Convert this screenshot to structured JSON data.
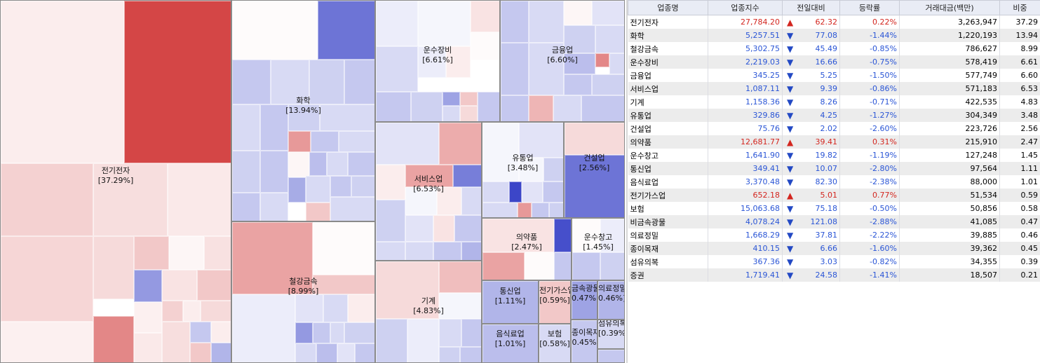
{
  "colors": {
    "up_text": "#d3261f",
    "down_text": "#2a55d6",
    "header_bg": "#e9ecf5",
    "alt_row_bg": "#ececec"
  },
  "treemap": {
    "sectors": [
      {
        "name": "전기전자",
        "weight": "[37.29%]",
        "change": 0.22
      },
      {
        "name": "화학",
        "weight": "[13.94%]",
        "change": -1.44
      },
      {
        "name": "철강금속",
        "weight": "[8.99%]",
        "change": -0.85
      },
      {
        "name": "운수장비",
        "weight": "[6.61%]",
        "change": -0.75
      },
      {
        "name": "금융업",
        "weight": "[6.60%]",
        "change": -1.5
      },
      {
        "name": "서비스업",
        "weight": "[6.53%]",
        "change": -0.86
      },
      {
        "name": "기계",
        "weight": "[4.83%]",
        "change": -0.71
      },
      {
        "name": "유통업",
        "weight": "[3.48%]",
        "change": -1.27
      },
      {
        "name": "건설업",
        "weight": "[2.56%]",
        "change": -2.6
      },
      {
        "name": "의약품",
        "weight": "[2.47%]",
        "change": 0.31
      },
      {
        "name": "운수창고",
        "weight": "[1.45%]",
        "change": -1.19
      },
      {
        "name": "통신업",
        "weight": "[1.11%]",
        "change": -2.8
      },
      {
        "name": "전기가스업",
        "weight": "[0.59%]",
        "change": 0.77
      },
      {
        "name": "금속광물",
        "weight": "0.47%]",
        "change": -2.88
      },
      {
        "name": "의료정밀",
        "weight": "0.46%]",
        "change": -2.22
      },
      {
        "name": "음식료업",
        "weight": "[1.01%]",
        "change": -2.38
      },
      {
        "name": "보험",
        "weight": "[0.58%]",
        "change": -0.5
      },
      {
        "name": "종이목재",
        "weight": "0.45%",
        "change": -1.6
      },
      {
        "name": "섬유의복",
        "weight": "[0.39%]",
        "change": -0.82
      },
      {
        "name": "증권",
        "weight": "",
        "change": -1.41
      }
    ]
  },
  "table": {
    "headers": [
      "업종명",
      "업종지수",
      "전일대비",
      "등락률",
      "거래대금(백만)",
      "비중"
    ],
    "rows": [
      {
        "name": "전기전자",
        "index": "27,784.20",
        "dir": "up",
        "diff": "62.32",
        "rate": "0.22%",
        "amount": "3,263,947",
        "share": "37.29"
      },
      {
        "name": "화학",
        "index": "5,257.51",
        "dir": "down",
        "diff": "77.08",
        "rate": "-1.44%",
        "amount": "1,220,193",
        "share": "13.94"
      },
      {
        "name": "철강금속",
        "index": "5,302.75",
        "dir": "down",
        "diff": "45.49",
        "rate": "-0.85%",
        "amount": "786,627",
        "share": "8.99"
      },
      {
        "name": "운수장비",
        "index": "2,219.03",
        "dir": "down",
        "diff": "16.66",
        "rate": "-0.75%",
        "amount": "578,419",
        "share": "6.61"
      },
      {
        "name": "금융업",
        "index": "345.25",
        "dir": "down",
        "diff": "5.25",
        "rate": "-1.50%",
        "amount": "577,749",
        "share": "6.60"
      },
      {
        "name": "서비스업",
        "index": "1,087.11",
        "dir": "down",
        "diff": "9.39",
        "rate": "-0.86%",
        "amount": "571,183",
        "share": "6.53"
      },
      {
        "name": "기계",
        "index": "1,158.36",
        "dir": "down",
        "diff": "8.26",
        "rate": "-0.71%",
        "amount": "422,535",
        "share": "4.83"
      },
      {
        "name": "유통업",
        "index": "329.86",
        "dir": "down",
        "diff": "4.25",
        "rate": "-1.27%",
        "amount": "304,349",
        "share": "3.48"
      },
      {
        "name": "건설업",
        "index": "75.76",
        "dir": "down",
        "diff": "2.02",
        "rate": "-2.60%",
        "amount": "223,726",
        "share": "2.56"
      },
      {
        "name": "의약품",
        "index": "12,681.77",
        "dir": "up",
        "diff": "39.41",
        "rate": "0.31%",
        "amount": "215,910",
        "share": "2.47"
      },
      {
        "name": "운수창고",
        "index": "1,641.90",
        "dir": "down",
        "diff": "19.82",
        "rate": "-1.19%",
        "amount": "127,248",
        "share": "1.45"
      },
      {
        "name": "통신업",
        "index": "349.41",
        "dir": "down",
        "diff": "10.07",
        "rate": "-2.80%",
        "amount": "97,564",
        "share": "1.11"
      },
      {
        "name": "음식료업",
        "index": "3,370.48",
        "dir": "down",
        "diff": "82.30",
        "rate": "-2.38%",
        "amount": "88,000",
        "share": "1.01"
      },
      {
        "name": "전기가스업",
        "index": "652.18",
        "dir": "up",
        "diff": "5.01",
        "rate": "0.77%",
        "amount": "51,534",
        "share": "0.59"
      },
      {
        "name": "보험",
        "index": "15,063.68",
        "dir": "down",
        "diff": "75.18",
        "rate": "-0.50%",
        "amount": "50,856",
        "share": "0.58"
      },
      {
        "name": "비금속광물",
        "index": "4,078.24",
        "dir": "down",
        "diff": "121.08",
        "rate": "-2.88%",
        "amount": "41,085",
        "share": "0.47"
      },
      {
        "name": "의료정밀",
        "index": "1,668.29",
        "dir": "down",
        "diff": "37.81",
        "rate": "-2.22%",
        "amount": "39,885",
        "share": "0.46"
      },
      {
        "name": "종이목재",
        "index": "410.15",
        "dir": "down",
        "diff": "6.66",
        "rate": "-1.60%",
        "amount": "39,362",
        "share": "0.45"
      },
      {
        "name": "섬유의복",
        "index": "367.36",
        "dir": "down",
        "diff": "3.03",
        "rate": "-0.82%",
        "amount": "34,355",
        "share": "0.39"
      },
      {
        "name": "증권",
        "index": "1,719.41",
        "dir": "down",
        "diff": "24.58",
        "rate": "-1.41%",
        "amount": "18,507",
        "share": "0.21"
      }
    ]
  }
}
